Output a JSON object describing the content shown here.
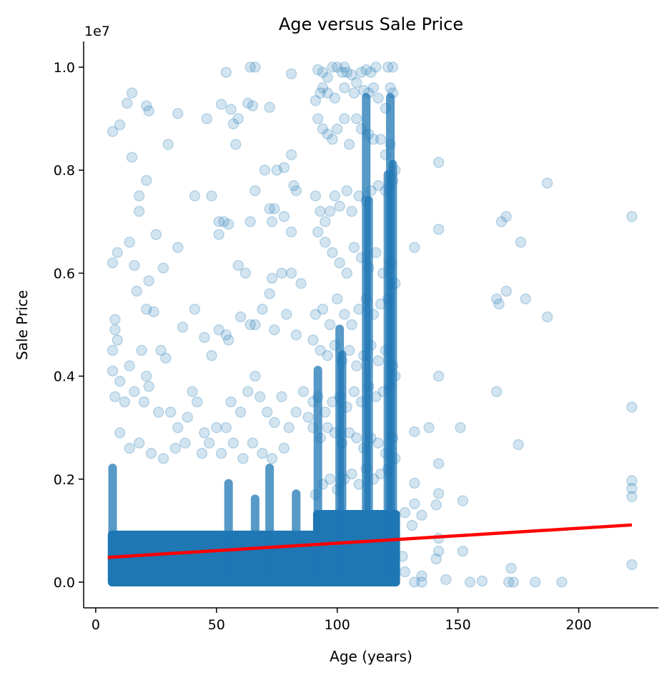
{
  "chart_data": {
    "type": "scatter",
    "title": "Age versus Sale Price",
    "xlabel": "Age (years)",
    "ylabel": "Sale Price",
    "y_multiplier_label": "1e7",
    "xlim": [
      -5,
      233
    ],
    "ylim": [
      -0.05,
      1.05
    ],
    "y_scale_factor": 10000000,
    "x_ticks": [
      0,
      50,
      100,
      150,
      200
    ],
    "x_tick_labels": [
      "0",
      "50",
      "100",
      "150",
      "200"
    ],
    "y_ticks": [
      0.0,
      0.2,
      0.4,
      0.6,
      0.8,
      1.0
    ],
    "y_tick_labels": [
      "0.0",
      "0.2",
      "0.4",
      "0.6",
      "0.8",
      "1.0"
    ],
    "grid": false,
    "point_color": "#1f77b4",
    "point_alpha": 0.2,
    "dense_regions_color": "#1f77b4",
    "dense_regions": [
      {
        "x": [
          5,
          126
        ],
        "y": [
          0.0,
          0.1
        ]
      },
      {
        "x": [
          90,
          126
        ],
        "y": [
          0.0,
          0.14
        ]
      }
    ],
    "sample_points": [
      [
        7,
        0.875
      ],
      [
        10,
        0.888
      ],
      [
        13,
        0.93
      ],
      [
        15,
        0.95
      ],
      [
        21,
        0.925
      ],
      [
        22,
        0.915
      ],
      [
        34,
        0.91
      ],
      [
        54,
        0.99
      ],
      [
        64,
        1.0
      ],
      [
        66,
        1.0
      ],
      [
        81,
        0.987
      ],
      [
        52,
        0.928
      ],
      [
        56,
        0.918
      ],
      [
        72,
        0.922
      ],
      [
        57,
        0.89
      ],
      [
        59,
        0.9
      ],
      [
        63,
        0.93
      ],
      [
        65,
        0.925
      ],
      [
        46,
        0.9
      ],
      [
        30,
        0.85
      ],
      [
        15,
        0.825
      ],
      [
        21,
        0.78
      ],
      [
        18,
        0.75
      ],
      [
        18,
        0.72
      ],
      [
        7,
        0.62
      ],
      [
        9,
        0.64
      ],
      [
        14,
        0.66
      ],
      [
        28,
        0.61
      ],
      [
        25,
        0.675
      ],
      [
        34,
        0.65
      ],
      [
        41,
        0.75
      ],
      [
        48,
        0.75
      ],
      [
        51,
        0.7
      ],
      [
        53,
        0.7
      ],
      [
        55,
        0.695
      ],
      [
        51,
        0.675
      ],
      [
        58,
        0.85
      ],
      [
        64,
        0.7
      ],
      [
        66,
        0.76
      ],
      [
        70,
        0.8
      ],
      [
        72,
        0.725
      ],
      [
        74,
        0.725
      ],
      [
        75,
        0.8
      ],
      [
        78,
        0.805
      ],
      [
        81,
        0.83
      ],
      [
        82,
        0.77
      ],
      [
        83,
        0.76
      ],
      [
        81,
        0.68
      ],
      [
        78,
        0.71
      ],
      [
        73,
        0.7
      ],
      [
        16,
        0.615
      ],
      [
        17,
        0.565
      ],
      [
        21,
        0.53
      ],
      [
        24,
        0.525
      ],
      [
        22,
        0.585
      ],
      [
        19,
        0.45
      ],
      [
        21,
        0.4
      ],
      [
        27,
        0.45
      ],
      [
        29,
        0.435
      ],
      [
        36,
        0.495
      ],
      [
        41,
        0.53
      ],
      [
        45,
        0.475
      ],
      [
        48,
        0.44
      ],
      [
        51,
        0.49
      ],
      [
        54,
        0.48
      ],
      [
        55,
        0.47
      ],
      [
        60,
        0.515
      ],
      [
        62,
        0.6
      ],
      [
        59,
        0.615
      ],
      [
        64,
        0.5
      ],
      [
        66,
        0.5
      ],
      [
        69,
        0.53
      ],
      [
        72,
        0.56
      ],
      [
        73,
        0.59
      ],
      [
        74,
        0.49
      ],
      [
        77,
        0.6
      ],
      [
        79,
        0.52
      ],
      [
        81,
        0.6
      ],
      [
        83,
        0.48
      ],
      [
        85,
        0.58
      ],
      [
        8,
        0.51
      ],
      [
        8,
        0.49
      ],
      [
        9,
        0.47
      ],
      [
        7,
        0.45
      ],
      [
        7,
        0.41
      ],
      [
        8,
        0.36
      ],
      [
        10,
        0.39
      ],
      [
        12,
        0.35
      ],
      [
        14,
        0.42
      ],
      [
        16,
        0.37
      ],
      [
        20,
        0.35
      ],
      [
        22,
        0.38
      ],
      [
        26,
        0.33
      ],
      [
        31,
        0.33
      ],
      [
        34,
        0.3
      ],
      [
        38,
        0.32
      ],
      [
        40,
        0.37
      ],
      [
        42,
        0.35
      ],
      [
        45,
        0.29
      ],
      [
        50,
        0.3
      ],
      [
        54,
        0.3
      ],
      [
        56,
        0.35
      ],
      [
        60,
        0.33
      ],
      [
        63,
        0.37
      ],
      [
        66,
        0.4
      ],
      [
        68,
        0.36
      ],
      [
        71,
        0.33
      ],
      [
        74,
        0.31
      ],
      [
        77,
        0.36
      ],
      [
        80,
        0.3
      ],
      [
        83,
        0.33
      ],
      [
        86,
        0.37
      ],
      [
        88,
        0.32
      ],
      [
        90,
        0.35
      ],
      [
        10,
        0.29
      ],
      [
        14,
        0.26
      ],
      [
        18,
        0.27
      ],
      [
        23,
        0.25
      ],
      [
        28,
        0.24
      ],
      [
        33,
        0.26
      ],
      [
        37,
        0.27
      ],
      [
        44,
        0.25
      ],
      [
        47,
        0.27
      ],
      [
        52,
        0.25
      ],
      [
        57,
        0.27
      ],
      [
        61,
        0.24
      ],
      [
        65,
        0.27
      ],
      [
        69,
        0.25
      ],
      [
        73,
        0.24
      ],
      [
        78,
        0.26
      ],
      [
        132,
        0.65
      ],
      [
        142,
        0.815
      ],
      [
        142,
        0.685
      ],
      [
        142,
        0.4
      ],
      [
        132,
        0.292
      ],
      [
        138,
        0.3
      ],
      [
        142,
        0.23
      ],
      [
        151,
        0.3
      ],
      [
        132,
        0.192
      ],
      [
        142,
        0.172
      ],
      [
        152,
        0.158
      ],
      [
        132,
        0.152
      ],
      [
        141,
        0.15
      ],
      [
        131,
        0.11
      ],
      [
        142,
        0.085
      ],
      [
        142,
        0.06
      ],
      [
        152,
        0.06
      ],
      [
        141,
        0.045
      ],
      [
        132,
        0.0
      ],
      [
        135,
        0.0
      ],
      [
        166,
        0.55
      ],
      [
        167,
        0.54
      ],
      [
        168,
        0.7
      ],
      [
        170,
        0.71
      ],
      [
        170,
        0.565
      ],
      [
        176,
        0.66
      ],
      [
        178,
        0.55
      ],
      [
        166,
        0.37
      ],
      [
        175,
        0.267
      ],
      [
        187,
        0.775
      ],
      [
        187,
        0.515
      ],
      [
        171,
        0.0
      ],
      [
        173,
        0.0
      ],
      [
        172,
        0.027
      ],
      [
        182,
        0.0
      ],
      [
        193,
        0.0
      ],
      [
        222,
        0.71
      ],
      [
        222,
        0.34
      ],
      [
        222,
        0.197
      ],
      [
        222,
        0.182
      ],
      [
        222,
        0.166
      ],
      [
        222,
        0.034
      ],
      [
        135,
        0.012
      ],
      [
        160,
        0.002
      ],
      [
        145,
        0.005
      ],
      [
        155,
        0.0
      ],
      [
        135,
        0.13
      ],
      [
        128,
        0.135
      ],
      [
        128,
        0.02
      ],
      [
        127,
        0.05
      ],
      [
        92,
        0.995
      ],
      [
        94,
        0.99
      ],
      [
        96,
        0.98
      ],
      [
        98,
        1.0
      ],
      [
        100,
        1.0
      ],
      [
        102,
        0.99
      ],
      [
        104,
        0.99
      ],
      [
        106,
        0.985
      ],
      [
        110,
        0.99
      ],
      [
        112,
        0.995
      ],
      [
        114,
        0.99
      ],
      [
        116,
        1.0
      ],
      [
        121,
        1.0
      ],
      [
        122,
        0.96
      ],
      [
        123,
        0.95
      ],
      [
        120,
        0.92
      ],
      [
        117,
        0.94
      ],
      [
        115,
        0.96
      ],
      [
        113,
        0.95
      ],
      [
        111,
        0.955
      ],
      [
        108,
        0.97
      ],
      [
        107,
        0.95
      ],
      [
        103,
        0.96
      ],
      [
        99,
        0.94
      ],
      [
        96,
        0.95
      ],
      [
        94,
        0.96
      ],
      [
        93,
        0.95
      ],
      [
        91,
        0.935
      ],
      [
        92,
        0.9
      ],
      [
        94,
        0.88
      ],
      [
        96,
        0.87
      ],
      [
        98,
        0.86
      ],
      [
        100,
        0.88
      ],
      [
        103,
        0.9
      ],
      [
        105,
        0.85
      ],
      [
        108,
        0.9
      ],
      [
        110,
        0.88
      ],
      [
        113,
        0.87
      ],
      [
        115,
        0.86
      ],
      [
        118,
        0.86
      ],
      [
        120,
        0.83
      ],
      [
        122,
        0.85
      ],
      [
        124,
        0.8
      ],
      [
        123,
        0.78
      ],
      [
        120,
        0.76
      ],
      [
        117,
        0.77
      ],
      [
        114,
        0.76
      ],
      [
        112,
        0.74
      ],
      [
        109,
        0.75
      ],
      [
        106,
        0.72
      ],
      [
        104,
        0.76
      ],
      [
        101,
        0.73
      ],
      [
        99,
        0.75
      ],
      [
        97,
        0.72
      ],
      [
        95,
        0.7
      ],
      [
        93,
        0.72
      ],
      [
        91,
        0.75
      ],
      [
        92,
        0.68
      ],
      [
        95,
        0.66
      ],
      [
        98,
        0.64
      ],
      [
        101,
        0.62
      ],
      [
        104,
        0.6
      ],
      [
        107,
        0.65
      ],
      [
        110,
        0.63
      ],
      [
        113,
        0.61
      ],
      [
        116,
        0.64
      ],
      [
        119,
        0.6
      ],
      [
        122,
        0.62
      ],
      [
        124,
        0.58
      ],
      [
        121,
        0.55
      ],
      [
        118,
        0.54
      ],
      [
        115,
        0.52
      ],
      [
        112,
        0.55
      ],
      [
        109,
        0.53
      ],
      [
        106,
        0.5
      ],
      [
        103,
        0.52
      ],
      [
        100,
        0.55
      ],
      [
        97,
        0.5
      ],
      [
        94,
        0.53
      ],
      [
        91,
        0.52
      ],
      [
        90,
        0.47
      ],
      [
        93,
        0.45
      ],
      [
        96,
        0.44
      ],
      [
        99,
        0.46
      ],
      [
        102,
        0.43
      ],
      [
        105,
        0.45
      ],
      [
        108,
        0.42
      ],
      [
        111,
        0.44
      ],
      [
        114,
        0.46
      ],
      [
        117,
        0.43
      ],
      [
        120,
        0.45
      ],
      [
        123,
        0.42
      ],
      [
        124,
        0.4
      ],
      [
        122,
        0.38
      ],
      [
        119,
        0.37
      ],
      [
        116,
        0.36
      ],
      [
        113,
        0.38
      ],
      [
        110,
        0.35
      ],
      [
        107,
        0.37
      ],
      [
        104,
        0.34
      ],
      [
        101,
        0.36
      ],
      [
        98,
        0.35
      ],
      [
        95,
        0.33
      ],
      [
        92,
        0.36
      ],
      [
        90,
        0.3
      ],
      [
        93,
        0.28
      ],
      [
        96,
        0.3
      ],
      [
        99,
        0.29
      ],
      [
        102,
        0.27
      ],
      [
        105,
        0.29
      ],
      [
        108,
        0.28
      ],
      [
        111,
        0.26
      ],
      [
        114,
        0.28
      ],
      [
        117,
        0.27
      ],
      [
        120,
        0.25
      ],
      [
        123,
        0.28
      ],
      [
        124,
        0.24
      ],
      [
        121,
        0.22
      ],
      [
        118,
        0.21
      ],
      [
        115,
        0.2
      ],
      [
        112,
        0.22
      ],
      [
        109,
        0.19
      ],
      [
        106,
        0.21
      ],
      [
        103,
        0.2
      ],
      [
        100,
        0.18
      ],
      [
        97,
        0.2
      ],
      [
        94,
        0.19
      ],
      [
        91,
        0.17
      ],
      [
        123,
        1.0
      ],
      [
        103,
        1.0
      ]
    ],
    "column_streaks": [
      {
        "x": 92,
        "y": [
          0.0,
          0.42
        ]
      },
      {
        "x": 101,
        "y": [
          0.0,
          0.5
        ]
      },
      {
        "x": 102,
        "y": [
          0.0,
          0.45
        ]
      },
      {
        "x": 112,
        "y": [
          0.0,
          0.95
        ]
      },
      {
        "x": 113,
        "y": [
          0.0,
          0.75
        ]
      },
      {
        "x": 121,
        "y": [
          0.0,
          0.8
        ]
      },
      {
        "x": 122,
        "y": [
          0.0,
          0.95
        ]
      },
      {
        "x": 123,
        "y": [
          0.0,
          0.82
        ]
      },
      {
        "x": 7,
        "y": [
          0.0,
          0.23
        ]
      },
      {
        "x": 55,
        "y": [
          0.0,
          0.2
        ]
      },
      {
        "x": 66,
        "y": [
          0.0,
          0.17
        ]
      },
      {
        "x": 72,
        "y": [
          0.0,
          0.23
        ]
      },
      {
        "x": 83,
        "y": [
          0.0,
          0.18
        ]
      }
    ],
    "trend_line": {
      "color": "#ff0000",
      "x": [
        5,
        222
      ],
      "y": [
        0.048,
        0.111
      ]
    }
  }
}
